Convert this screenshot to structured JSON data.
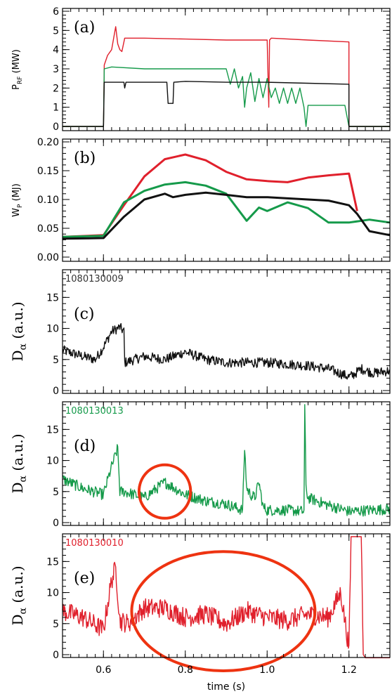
{
  "colors": {
    "black": "#111111",
    "green": "#159a4a",
    "red": "#e0202c",
    "circle": "#ee3311"
  },
  "chart_data": [
    {
      "panel": "(a)",
      "type": "line",
      "ylabel_main": "P",
      "ylabel_sub": "RF",
      "ylabel_unit": " (MW)",
      "ylim": [
        0,
        6
      ],
      "yticks": [
        0,
        1,
        2,
        3,
        4,
        5,
        6
      ],
      "series": [
        {
          "color": "red",
          "x": [
            0.5,
            0.6,
            0.602,
            0.61,
            0.62,
            0.625,
            0.63,
            0.635,
            0.64,
            0.645,
            0.65,
            0.652,
            0.66,
            0.7,
            0.8,
            0.9,
            1.0,
            1.004,
            1.006,
            1.01,
            1.1,
            1.2,
            1.2,
            1.3
          ],
          "y": [
            0,
            0,
            3.2,
            3.7,
            4.0,
            4.6,
            5.2,
            4.3,
            4.0,
            3.9,
            4.4,
            4.6,
            4.6,
            4.6,
            4.55,
            4.5,
            4.5,
            1.0,
            4.5,
            4.6,
            4.5,
            4.4,
            0,
            0
          ]
        },
        {
          "color": "green",
          "x": [
            0.5,
            0.6,
            0.602,
            0.62,
            0.7,
            0.8,
            0.9,
            0.91,
            0.92,
            0.93,
            0.94,
            0.945,
            0.95,
            0.96,
            0.97,
            0.98,
            0.99,
            1.0,
            1.01,
            1.02,
            1.03,
            1.04,
            1.05,
            1.06,
            1.07,
            1.08,
            1.09,
            1.095,
            1.1,
            1.19,
            1.2,
            1.3
          ],
          "y": [
            0,
            0,
            3.0,
            3.1,
            3.0,
            3.0,
            3.0,
            2.2,
            3.0,
            2.0,
            2.6,
            1.0,
            2.0,
            2.8,
            1.3,
            2.5,
            1.5,
            2.5,
            1.5,
            2.0,
            1.2,
            2.0,
            1.2,
            2.0,
            1.2,
            2.0,
            1.0,
            0,
            1.1,
            1.1,
            0,
            0
          ]
        },
        {
          "color": "black",
          "x": [
            0.5,
            0.6,
            0.602,
            0.65,
            0.652,
            0.655,
            0.7,
            0.755,
            0.758,
            0.77,
            0.772,
            0.8,
            0.9,
            1.0,
            1.1,
            1.2,
            1.2,
            1.3
          ],
          "y": [
            0,
            0,
            2.3,
            2.3,
            2.0,
            2.3,
            2.3,
            2.3,
            1.2,
            1.2,
            2.3,
            2.35,
            2.3,
            2.3,
            2.25,
            2.2,
            0,
            0
          ]
        }
      ]
    },
    {
      "panel": "(b)",
      "type": "line",
      "ylabel_main": "W",
      "ylabel_sub": "P",
      "ylabel_unit": " (MJ)",
      "ylim": [
        0.0,
        0.2
      ],
      "yticks": [
        "0.00",
        "0.05",
        "0.10",
        "0.15",
        "0.20"
      ],
      "series": [
        {
          "color": "red",
          "x": [
            0.5,
            0.6,
            0.65,
            0.7,
            0.75,
            0.8,
            0.85,
            0.9,
            0.95,
            1.0,
            1.05,
            1.1,
            1.15,
            1.2,
            1.22
          ],
          "y": [
            0.035,
            0.038,
            0.09,
            0.14,
            0.17,
            0.178,
            0.168,
            0.148,
            0.135,
            0.132,
            0.13,
            0.138,
            0.142,
            0.145,
            0.08
          ]
        },
        {
          "color": "green",
          "x": [
            0.5,
            0.6,
            0.65,
            0.7,
            0.75,
            0.8,
            0.85,
            0.9,
            0.95,
            0.98,
            1.0,
            1.05,
            1.1,
            1.15,
            1.2,
            1.25,
            1.3
          ],
          "y": [
            0.035,
            0.037,
            0.095,
            0.115,
            0.126,
            0.13,
            0.124,
            0.11,
            0.063,
            0.086,
            0.08,
            0.095,
            0.085,
            0.06,
            0.06,
            0.065,
            0.06
          ]
        },
        {
          "color": "black",
          "x": [
            0.5,
            0.6,
            0.65,
            0.7,
            0.75,
            0.77,
            0.8,
            0.85,
            0.9,
            0.95,
            1.0,
            1.05,
            1.1,
            1.15,
            1.2,
            1.22,
            1.25,
            1.3
          ],
          "y": [
            0.032,
            0.033,
            0.07,
            0.1,
            0.11,
            0.104,
            0.108,
            0.112,
            0.108,
            0.104,
            0.104,
            0.102,
            0.1,
            0.098,
            0.09,
            0.075,
            0.045,
            0.038
          ]
        }
      ]
    },
    {
      "panel": "(c)",
      "shot": "1080130009",
      "type": "line",
      "ylabel_main": "D",
      "ylabel_sub": "α",
      "ylabel_unit": " (a.u.)",
      "ylim": [
        0,
        19
      ],
      "yticks": [
        0,
        5,
        10,
        15
      ],
      "series": [
        {
          "color": "black",
          "noise": 0.8,
          "x": [
            0.5,
            0.55,
            0.58,
            0.6,
            0.62,
            0.64,
            0.65,
            0.652,
            0.7,
            0.75,
            0.8,
            0.85,
            0.9,
            1.0,
            1.1,
            1.15,
            1.2,
            1.21,
            1.23,
            1.26,
            1.3
          ],
          "y": [
            6.5,
            5.5,
            5.0,
            7.0,
            9.5,
            10.2,
            9.5,
            4.5,
            5.5,
            5.0,
            6.2,
            5.0,
            4.5,
            4.5,
            4.0,
            3.5,
            2.2,
            2.5,
            3.5,
            2.8,
            3.2
          ]
        }
      ]
    },
    {
      "panel": "(d)",
      "shot": "1080130013",
      "type": "line",
      "ylabel_main": "D",
      "ylabel_sub": "α",
      "ylabel_unit": " (a.u.)",
      "ylim": [
        0,
        19
      ],
      "yticks": [
        0,
        5,
        10,
        15
      ],
      "series": [
        {
          "color": "green",
          "noise": 0.9,
          "x": [
            0.5,
            0.55,
            0.6,
            0.62,
            0.635,
            0.64,
            0.65,
            0.7,
            0.72,
            0.75,
            0.8,
            0.85,
            0.9,
            0.94,
            0.945,
            0.95,
            0.96,
            0.97,
            0.98,
            0.99,
            1.0,
            1.05,
            1.09,
            1.092,
            1.095,
            1.1,
            1.15,
            1.2,
            1.25,
            1.3
          ],
          "y": [
            7.0,
            5.5,
            4.5,
            9.0,
            12.0,
            5.0,
            5.0,
            4.0,
            5.0,
            6.5,
            4.5,
            3.5,
            3.0,
            2.0,
            12.0,
            5.5,
            4.5,
            4.0,
            6.5,
            2.5,
            2.0,
            2.0,
            1.8,
            19.0,
            5.5,
            4.0,
            2.8,
            1.8,
            2.0,
            2.2
          ]
        }
      ],
      "annotation": {
        "shape": "ellipse",
        "cx": 0.75,
        "cy": 5.0,
        "rx": 0.063,
        "ry": 4.3
      }
    },
    {
      "panel": "(e)",
      "shot": "1080130010",
      "type": "line",
      "ylabel_main": "D",
      "ylabel_sub": "α",
      "ylabel_unit": " (a.u.)",
      "ylim": [
        0,
        19
      ],
      "yticks": [
        0,
        5,
        10,
        15
      ],
      "series": [
        {
          "color": "red",
          "noise": 1.6,
          "x": [
            0.5,
            0.55,
            0.6,
            0.62,
            0.63,
            0.64,
            0.66,
            0.7,
            0.75,
            0.8,
            0.85,
            0.9,
            0.95,
            1.0,
            1.05,
            1.1,
            1.15,
            1.18,
            1.19,
            1.2,
            1.205,
            1.21,
            1.22,
            1.23,
            1.235,
            1.24,
            1.3
          ],
          "y": [
            7.0,
            6.0,
            4.0,
            12.0,
            14.0,
            5.5,
            5.0,
            7.5,
            7.5,
            6.0,
            6.5,
            5.0,
            7.0,
            6.0,
            5.5,
            6.5,
            6.0,
            10.0,
            5.5,
            1.0,
            19.0,
            19.0,
            19.0,
            19.0,
            0,
            -0.5,
            -0.5
          ]
        }
      ],
      "annotation": {
        "shape": "ellipse",
        "cx": 0.893,
        "cy": 7.0,
        "rx": 0.224,
        "ry": 9.6
      }
    }
  ],
  "x_axis": {
    "xlim": [
      0.5,
      1.3
    ],
    "ticks": [
      "0.6",
      "0.8",
      "1.0",
      "1.2"
    ],
    "label": "time (s)"
  }
}
